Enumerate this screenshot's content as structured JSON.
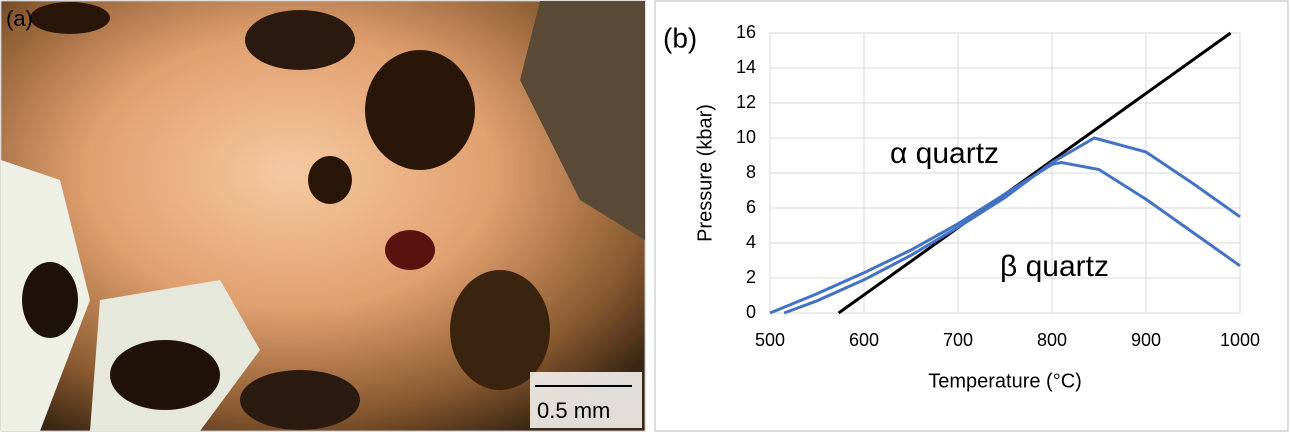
{
  "panel_a": {
    "label": "(a)",
    "scale_bar": "0.5 mm"
  },
  "chart_data": {
    "type": "line",
    "label": "(b)",
    "x_label": "Temperature (°C)",
    "y_label": "Pressure (kbar)",
    "annotations": [
      "α quartz",
      "β quartz"
    ],
    "xlim": [
      500,
      1000
    ],
    "xticks": [
      500,
      600,
      700,
      800,
      900,
      1000
    ],
    "ylim": [
      0,
      16
    ],
    "yticks": [
      0,
      2,
      4,
      6,
      8,
      10,
      12,
      14,
      16
    ],
    "grid": true,
    "series": [
      {
        "color": "#000000",
        "x": [
          573,
          990
        ],
        "values": [
          0,
          16
        ]
      },
      {
        "color": "#4472c4",
        "x": [
          500,
          550,
          600,
          650,
          700,
          750,
          800,
          810,
          850,
          900,
          950,
          1000
        ],
        "values": [
          0,
          1.1,
          2.3,
          3.6,
          5.1,
          6.8,
          8.5,
          8.6,
          8.2,
          6.5,
          4.6,
          2.7
        ]
      },
      {
        "color": "#4472c4",
        "x": [
          515,
          550,
          600,
          650,
          700,
          750,
          800,
          845,
          900,
          950,
          1000
        ],
        "values": [
          0,
          0.7,
          1.9,
          3.3,
          4.9,
          6.6,
          8.6,
          10.0,
          9.2,
          7.4,
          5.5
        ]
      }
    ]
  }
}
